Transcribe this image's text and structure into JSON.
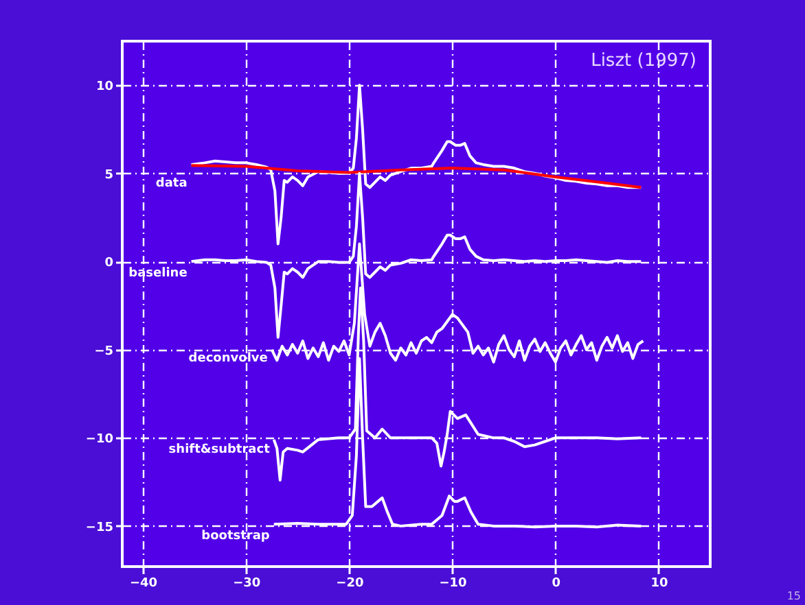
{
  "chart_data": {
    "type": "line",
    "xlim": [
      -42,
      15
    ],
    "ylim": [
      -17.3,
      12.5
    ],
    "xticks": [
      -40,
      -30,
      -20,
      -10,
      0,
      10
    ],
    "yticks": [
      -15,
      -10,
      -5,
      0,
      5,
      10
    ],
    "grid": true,
    "line_style": "solid",
    "marker": "none",
    "annotations": [
      "Liszt (1997)",
      "15"
    ],
    "series": [
      {
        "name": "data",
        "color": "#ffffff",
        "x": [
          -35.3,
          -34,
          -33,
          -32,
          -31,
          -30,
          -29,
          -28,
          -27.6,
          -27.2,
          -26.9,
          -26.6,
          -26.3,
          -26,
          -25.5,
          -25,
          -24.5,
          -24,
          -23,
          -22,
          -21,
          -20,
          -19.6,
          -19.3,
          -19,
          -18.7,
          -18.4,
          -18,
          -17.5,
          -17,
          -16.5,
          -16,
          -15,
          -14,
          -13,
          -12,
          -11.8,
          -11,
          -10.5,
          -10.2,
          -9.7,
          -9.2,
          -8.8,
          -8.3,
          -7.7,
          -7,
          -6,
          -5,
          -4,
          -3,
          -2,
          -1,
          0,
          1,
          2,
          3,
          4,
          5,
          6,
          7,
          8,
          8.3
        ],
        "values": [
          5.5,
          5.6,
          5.7,
          5.65,
          5.6,
          5.6,
          5.5,
          5.35,
          5.2,
          4.0,
          1.0,
          2.5,
          4.6,
          4.5,
          4.8,
          4.6,
          4.3,
          4.8,
          5.1,
          5.05,
          5.0,
          5.0,
          5.3,
          7.0,
          10.0,
          7.5,
          4.4,
          4.2,
          4.5,
          4.8,
          4.6,
          4.9,
          5.1,
          5.3,
          5.3,
          5.4,
          5.6,
          6.3,
          6.8,
          6.8,
          6.6,
          6.6,
          6.7,
          6.0,
          5.6,
          5.5,
          5.4,
          5.4,
          5.3,
          5.1,
          5.0,
          4.85,
          4.75,
          4.6,
          4.55,
          4.45,
          4.4,
          4.3,
          4.3,
          4.2,
          4.2,
          4.2
        ]
      },
      {
        "color": "#ff0000",
        "x": [
          -35.3,
          -30,
          -25,
          -20,
          -15,
          -10,
          -5,
          0,
          5,
          8.3
        ],
        "values": [
          5.45,
          5.4,
          5.15,
          5.05,
          5.2,
          5.3,
          5.2,
          4.8,
          4.45,
          4.2
        ]
      },
      {
        "name": "baseline",
        "color": "#ffffff",
        "x": [
          -35.3,
          -34,
          -33,
          -32,
          -31,
          -30,
          -29,
          -28,
          -27.6,
          -27.2,
          -26.9,
          -26.6,
          -26.3,
          -26,
          -25.5,
          -25,
          -24.5,
          -24,
          -23,
          -22,
          -21,
          -20,
          -19.6,
          -19.3,
          -19,
          -18.7,
          -18.4,
          -18,
          -17.5,
          -17,
          -16.5,
          -16,
          -15,
          -14,
          -13,
          -12,
          -11.8,
          -11,
          -10.5,
          -10.2,
          -9.7,
          -9.2,
          -8.8,
          -8.3,
          -7.7,
          -7,
          -6,
          -5,
          -4,
          -3,
          -2,
          -1,
          0,
          1,
          2,
          3,
          4,
          5,
          6,
          7,
          8,
          8.3
        ],
        "values": [
          0,
          0.1,
          0.1,
          0.05,
          0.05,
          0.1,
          0,
          -0.05,
          -0.2,
          -1.5,
          -4.3,
          -2.5,
          -0.6,
          -0.7,
          -0.4,
          -0.6,
          -0.9,
          -0.4,
          0,
          0,
          -0.05,
          -0.05,
          0.3,
          2.0,
          5.0,
          2.5,
          -0.7,
          -0.9,
          -0.6,
          -0.3,
          -0.5,
          -0.2,
          -0.1,
          0.1,
          0.05,
          0.1,
          0.3,
          1.0,
          1.5,
          1.5,
          1.3,
          1.3,
          1.4,
          0.7,
          0.3,
          0.1,
          0.05,
          0.1,
          0.05,
          0,
          0.05,
          0,
          0.05,
          0.05,
          0.1,
          0.05,
          0,
          -0.05,
          0.05,
          0,
          0,
          0
        ]
      },
      {
        "name": "deconvolve",
        "color": "#ffffff",
        "x": [
          -27.5,
          -27,
          -26.5,
          -26,
          -25.5,
          -25,
          -24.5,
          -24,
          -23.5,
          -23,
          -22.5,
          -22,
          -21.5,
          -21,
          -20.5,
          -20,
          -19.5,
          -19,
          -18.5,
          -18,
          -17.5,
          -17,
          -16.5,
          -16,
          -15.5,
          -15,
          -14.5,
          -14,
          -13.5,
          -13,
          -12.5,
          -12,
          -11.5,
          -11,
          -10.5,
          -10,
          -9.5,
          -9,
          -8.5,
          -8,
          -7.5,
          -7,
          -6.5,
          -6,
          -5.5,
          -5,
          -4.5,
          -4,
          -3.5,
          -3,
          -2.5,
          -2,
          -1.5,
          -1,
          -0.5,
          0,
          0.5,
          1,
          1.5,
          2,
          2.5,
          3,
          3.5,
          4,
          4.5,
          5,
          5.5,
          6,
          6.5,
          7,
          7.5,
          8,
          8.5
        ],
        "values": [
          -5.0,
          -5.6,
          -4.8,
          -5.3,
          -4.7,
          -5.2,
          -4.5,
          -5.5,
          -4.9,
          -5.4,
          -4.6,
          -5.6,
          -4.8,
          -5.1,
          -4.5,
          -5.3,
          -3.5,
          1.0,
          -3.0,
          -4.8,
          -4.0,
          -3.5,
          -4.2,
          -5.2,
          -5.6,
          -4.9,
          -5.3,
          -4.6,
          -5.2,
          -4.5,
          -4.3,
          -4.6,
          -4.0,
          -3.8,
          -3.4,
          -3.0,
          -3.2,
          -3.6,
          -4.0,
          -5.2,
          -4.8,
          -5.3,
          -4.9,
          -5.7,
          -4.7,
          -4.2,
          -5.0,
          -5.4,
          -4.5,
          -5.6,
          -4.8,
          -4.4,
          -5.1,
          -4.6,
          -5.2,
          -5.7,
          -4.9,
          -4.5,
          -5.3,
          -4.7,
          -4.2,
          -5.0,
          -4.6,
          -5.6,
          -4.8,
          -4.3,
          -4.9,
          -4.2,
          -5.1,
          -4.6,
          -5.5,
          -4.7,
          -4.5
        ]
      },
      {
        "name": "shift&subtract",
        "color": "#ffffff",
        "x": [
          -27.3,
          -27,
          -26.7,
          -26.4,
          -26,
          -25,
          -24.5,
          -23,
          -21,
          -20,
          -19.4,
          -19.1,
          -18.9,
          -18.6,
          -18.3,
          -17.5,
          -16.8,
          -16,
          -14,
          -12,
          -11.5,
          -11.1,
          -10.8,
          -10.5,
          -10.2,
          -9.5,
          -8.7,
          -7.5,
          -6,
          -5,
          -4,
          -3,
          -2,
          -1,
          0,
          2,
          4,
          6,
          8.3
        ],
        "values": [
          -10.1,
          -10.6,
          -12.4,
          -10.8,
          -10.6,
          -10.7,
          -10.8,
          -10.1,
          -10.0,
          -10.0,
          -9.5,
          -4.0,
          -1.5,
          -4.5,
          -9.6,
          -10.0,
          -9.5,
          -10.0,
          -10.0,
          -10.0,
          -10.3,
          -11.6,
          -10.8,
          -9.8,
          -8.5,
          -8.9,
          -8.7,
          -9.8,
          -10.0,
          -10.0,
          -10.2,
          -10.5,
          -10.4,
          -10.2,
          -10.0,
          -10.0,
          -10.0,
          -10.05,
          -10.0
        ]
      },
      {
        "name": "bootstrap",
        "color": "#ffffff",
        "x": [
          -27.3,
          -25,
          -23,
          -21,
          -20.3,
          -19.7,
          -19.3,
          -19,
          -18.7,
          -18.4,
          -17.8,
          -17.2,
          -16.8,
          -16.3,
          -15.8,
          -15,
          -13,
          -12,
          -11,
          -10.3,
          -9.8,
          -9.5,
          -8.8,
          -8.2,
          -7.5,
          -6,
          -4,
          -2,
          0,
          2,
          4,
          6,
          8.3
        ],
        "values": [
          -14.9,
          -14.85,
          -14.9,
          -14.9,
          -14.9,
          -14.4,
          -11.0,
          -5.5,
          -10.0,
          -13.9,
          -13.9,
          -13.6,
          -13.4,
          -14.2,
          -14.9,
          -15.0,
          -14.9,
          -14.9,
          -14.4,
          -13.3,
          -13.6,
          -13.6,
          -13.4,
          -14.2,
          -14.9,
          -15.0,
          -15.0,
          -15.05,
          -15.0,
          -15.0,
          -15.05,
          -14.95,
          -15.0
        ]
      }
    ]
  }
}
